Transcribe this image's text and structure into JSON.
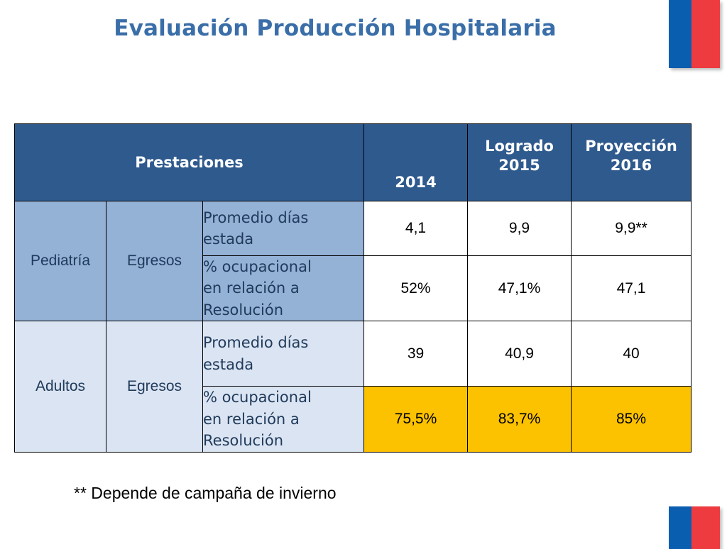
{
  "title": "Evaluación Producción Hospitalaria",
  "colors": {
    "title": "#3a6ea8",
    "header_bg": "#2f5a8e",
    "pediatria_bg": "#94b1d6",
    "adultos_bg": "#dbe4f2",
    "highlight": "#fcc200",
    "flag_blue": "#0a5eb0",
    "flag_red": "#ee3b3f"
  },
  "table": {
    "headers": {
      "prestaciones": "Prestaciones",
      "col1": "2014",
      "col2_line1": "Logrado",
      "col2_line2": "2015",
      "col3_line1": "Proyección",
      "col3_line2": "2016"
    },
    "groups": [
      {
        "category": "Pediatría",
        "subcategory": "Egresos",
        "rows": [
          {
            "desc_line1": "Promedio días",
            "desc_line2": "estada",
            "desc_line3": "",
            "v2014": "4,1",
            "v2015": "9,9",
            "v2016": "9,9**"
          },
          {
            "desc_line1": "% ocupacional",
            "desc_line2": "en relación a",
            "desc_line3": "Resolución",
            "v2014": "52%",
            "v2015": "47,1%",
            "v2016": "47,1"
          }
        ]
      },
      {
        "category": "Adultos",
        "subcategory": "Egresos",
        "rows": [
          {
            "desc_line1": "Promedio días",
            "desc_line2": "estada",
            "desc_line3": "",
            "v2014": "39",
            "v2015": "40,9",
            "v2016": "40"
          },
          {
            "desc_line1": "% ocupacional",
            "desc_line2": "en relación a",
            "desc_line3": "Resolución",
            "v2014": "75,5%",
            "v2015": "83,7%",
            "v2016": "85%"
          }
        ]
      }
    ]
  },
  "footnote": "** Depende de campaña de invierno"
}
